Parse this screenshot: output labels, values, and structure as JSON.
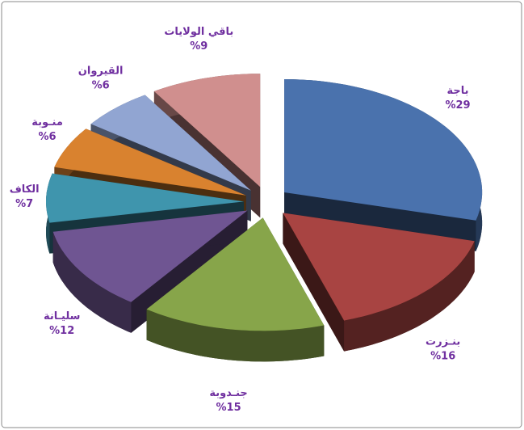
{
  "chart_data": {
    "type": "pie",
    "categories": [
      "باجة",
      "بنـزرت",
      "جنـدوبة",
      "سليـانة",
      "الكاف",
      "منـوبة",
      "القيروان",
      "باقي الولايات"
    ],
    "values": [
      29,
      16,
      15,
      12,
      7,
      6,
      6,
      9
    ],
    "value_labels": [
      "%29",
      "%16",
      "%15",
      "%12",
      "%7",
      "%6",
      "%6",
      "%9"
    ],
    "colors": [
      "#4a72ad",
      "#a84442",
      "#87a54a",
      "#6f5592",
      "#3f95ad",
      "#d9822f",
      "#91a5d2",
      "#d08f8e"
    ]
  }
}
